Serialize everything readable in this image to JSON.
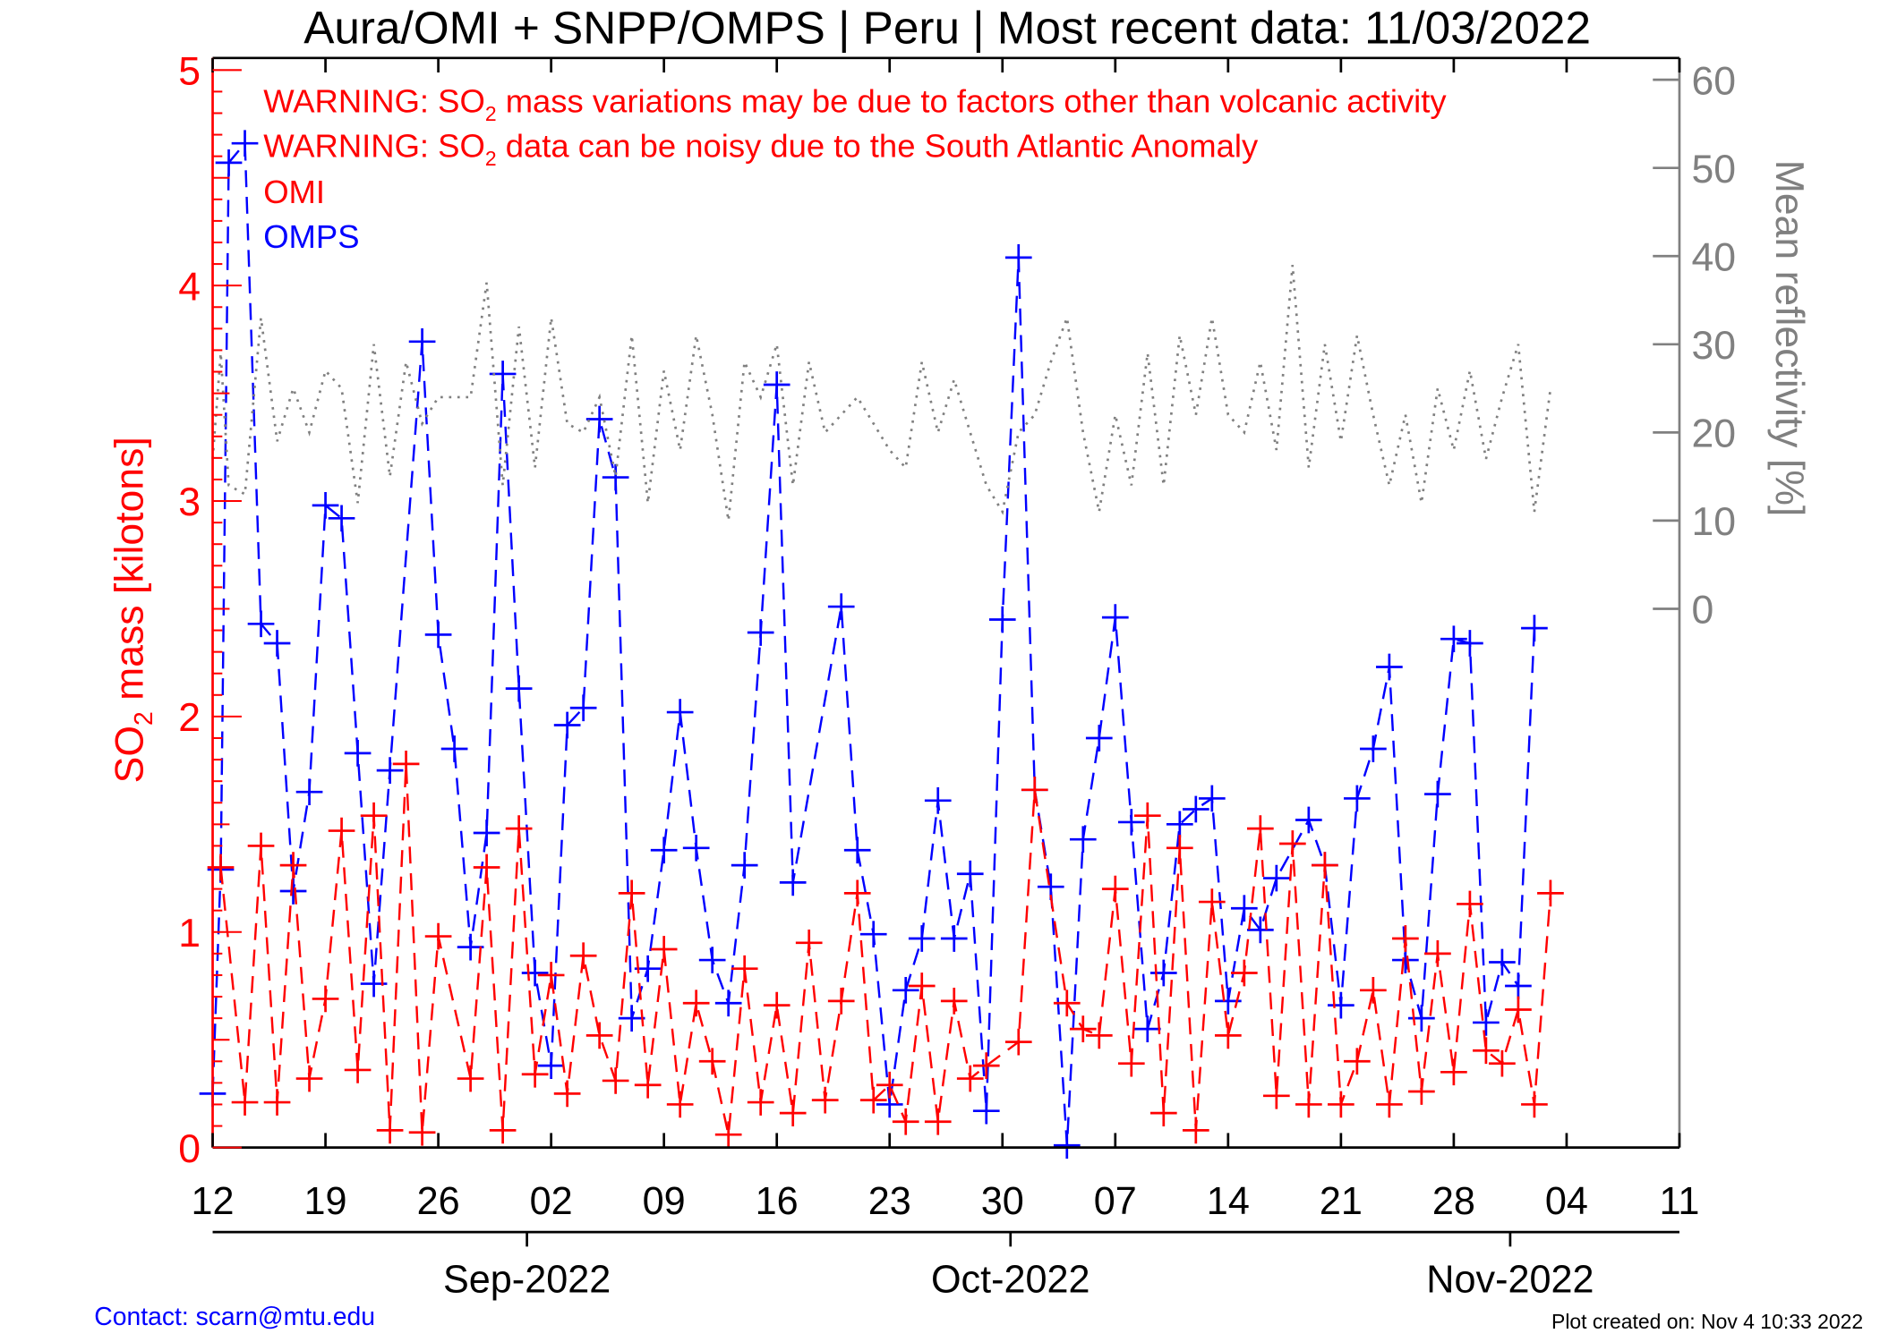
{
  "chart_data": {
    "type": "line",
    "title": "Aura/OMI + SNPP/OMPS | Peru | Most recent data: 11/03/2022",
    "x_unit": "days since 2022-08-12",
    "xlim": [
      0,
      91
    ],
    "x_ticks": [
      {
        "day": 0,
        "label": "12"
      },
      {
        "day": 7,
        "label": "19"
      },
      {
        "day": 14,
        "label": "26"
      },
      {
        "day": 21,
        "label": "02"
      },
      {
        "day": 28,
        "label": "09"
      },
      {
        "day": 35,
        "label": "16"
      },
      {
        "day": 42,
        "label": "23"
      },
      {
        "day": 49,
        "label": "30"
      },
      {
        "day": 56,
        "label": "07"
      },
      {
        "day": 63,
        "label": "14"
      },
      {
        "day": 70,
        "label": "21"
      },
      {
        "day": 77,
        "label": "28"
      },
      {
        "day": 84,
        "label": "04"
      },
      {
        "day": 91,
        "label": "11"
      }
    ],
    "month_ticks": [
      {
        "day": 19.5,
        "label": "Sep-2022"
      },
      {
        "day": 49.5,
        "label": "Oct-2022"
      },
      {
        "day": 80.5,
        "label": "Nov-2022"
      }
    ],
    "ylabel_parts": [
      "SO",
      "2",
      " mass [kilotons]"
    ],
    "ylim": [
      0,
      5
    ],
    "y_ticks": [
      "0",
      "1",
      "2",
      "3",
      "4",
      "5"
    ],
    "y2label": "Mean reflectivity [%]",
    "y2lim": [
      0,
      60
    ],
    "y2_ticks": [
      "0",
      "10",
      "20",
      "30",
      "40",
      "50",
      "60"
    ],
    "warnings": [
      {
        "pre": "WARNING: SO",
        "sub": "2",
        "post": " mass variations may be due to factors other than volcanic activity"
      },
      {
        "pre": "WARNING: SO",
        "sub": "2",
        "post": " data can be noisy due to the South Atlantic Anomaly"
      }
    ],
    "legend": [
      {
        "name": "OMI",
        "color": "#ff0000"
      },
      {
        "name": "OMPS",
        "color": "#0000ff"
      }
    ],
    "series": [
      {
        "name": "OMPS",
        "color": "#0000ff",
        "axis": "left",
        "points": [
          [
            0,
            0.25
          ],
          [
            0.5,
            1.29
          ],
          [
            1,
            4.57
          ],
          [
            2,
            4.66
          ],
          [
            3,
            2.43
          ],
          [
            4,
            2.34
          ],
          [
            5,
            1.19
          ],
          [
            6,
            1.65
          ],
          [
            7,
            2.98
          ],
          [
            8,
            2.92
          ],
          [
            9,
            1.83
          ],
          [
            10,
            0.76
          ],
          [
            11,
            1.75
          ],
          [
            13,
            3.74
          ],
          [
            14,
            2.38
          ],
          [
            15,
            1.85
          ],
          [
            16,
            0.93
          ],
          [
            17,
            1.46
          ],
          [
            18,
            3.59
          ],
          [
            19,
            2.13
          ],
          [
            20,
            0.81
          ],
          [
            21,
            0.38
          ],
          [
            22,
            1.96
          ],
          [
            23,
            2.04
          ],
          [
            24,
            3.38
          ],
          [
            25,
            3.11
          ],
          [
            26,
            0.6
          ],
          [
            27,
            0.83
          ],
          [
            28,
            1.38
          ],
          [
            29,
            2.02
          ],
          [
            30,
            1.39
          ],
          [
            31,
            0.87
          ],
          [
            32,
            0.67
          ],
          [
            33,
            1.31
          ],
          [
            34,
            2.39
          ],
          [
            35,
            3.54
          ],
          [
            36,
            1.23
          ],
          [
            39,
            2.51
          ],
          [
            40,
            1.38
          ],
          [
            41,
            0.99
          ],
          [
            42,
            0.2
          ],
          [
            43,
            0.73
          ],
          [
            44,
            0.97
          ],
          [
            45,
            1.61
          ],
          [
            46,
            0.97
          ],
          [
            47,
            1.27
          ],
          [
            48,
            0.17
          ],
          [
            49,
            2.45
          ],
          [
            50,
            4.13
          ],
          [
            51,
            1.66
          ],
          [
            52,
            1.21
          ],
          [
            53,
            0.01
          ],
          [
            54,
            1.43
          ],
          [
            55,
            1.9
          ],
          [
            56,
            2.46
          ],
          [
            57,
            1.51
          ],
          [
            58,
            0.55
          ],
          [
            59,
            0.81
          ],
          [
            60,
            1.5
          ],
          [
            61,
            1.57
          ],
          [
            62,
            1.62
          ],
          [
            63,
            0.68
          ],
          [
            64,
            1.11
          ],
          [
            65,
            1.01
          ],
          [
            66,
            1.25
          ],
          [
            68,
            1.52
          ],
          [
            69,
            1.31
          ],
          [
            70,
            0.66
          ],
          [
            71,
            1.62
          ],
          [
            72,
            1.85
          ],
          [
            73,
            2.23
          ],
          [
            74,
            0.87
          ],
          [
            75,
            0.6
          ],
          [
            76,
            1.64
          ],
          [
            77,
            2.36
          ],
          [
            78,
            2.34
          ],
          [
            79,
            0.58
          ],
          [
            80,
            0.86
          ],
          [
            81,
            0.75
          ],
          [
            82,
            2.41
          ]
        ]
      },
      {
        "name": "OMI",
        "color": "#ff0000",
        "axis": "left",
        "points": [
          [
            0.5,
            1.3
          ],
          [
            2,
            0.21
          ],
          [
            3,
            1.4
          ],
          [
            4,
            0.21
          ],
          [
            5,
            1.31
          ],
          [
            6,
            0.32
          ],
          [
            7,
            0.69
          ],
          [
            8,
            1.47
          ],
          [
            9,
            0.36
          ],
          [
            10,
            1.54
          ],
          [
            11,
            0.08
          ],
          [
            12,
            1.78
          ],
          [
            13,
            0.07
          ],
          [
            14,
            0.98
          ],
          [
            16,
            0.32
          ],
          [
            17,
            1.3
          ],
          [
            18,
            0.08
          ],
          [
            19,
            1.48
          ],
          [
            20,
            0.34
          ],
          [
            21,
            0.8
          ],
          [
            22,
            0.25
          ],
          [
            23,
            0.89
          ],
          [
            24,
            0.52
          ],
          [
            25,
            0.31
          ],
          [
            26,
            1.18
          ],
          [
            27,
            0.29
          ],
          [
            28,
            0.92
          ],
          [
            29,
            0.2
          ],
          [
            30,
            0.67
          ],
          [
            31,
            0.4
          ],
          [
            32,
            0.06
          ],
          [
            33,
            0.83
          ],
          [
            34,
            0.21
          ],
          [
            35,
            0.66
          ],
          [
            36,
            0.16
          ],
          [
            37,
            0.95
          ],
          [
            38,
            0.22
          ],
          [
            39,
            0.68
          ],
          [
            40,
            1.18
          ],
          [
            41,
            0.22
          ],
          [
            42,
            0.29
          ],
          [
            43,
            0.12
          ],
          [
            44,
            0.75
          ],
          [
            45,
            0.12
          ],
          [
            46,
            0.68
          ],
          [
            47,
            0.32
          ],
          [
            48,
            0.38
          ],
          [
            50,
            0.49
          ],
          [
            51,
            1.66
          ],
          [
            53,
            0.67
          ],
          [
            54,
            0.55
          ],
          [
            55,
            0.52
          ],
          [
            56,
            1.2
          ],
          [
            57,
            0.39
          ],
          [
            58,
            1.54
          ],
          [
            59,
            0.16
          ],
          [
            60,
            1.39
          ],
          [
            61,
            0.08
          ],
          [
            62,
            1.14
          ],
          [
            63,
            0.52
          ],
          [
            64,
            0.81
          ],
          [
            65,
            1.48
          ],
          [
            66,
            0.24
          ],
          [
            67,
            1.41
          ],
          [
            68,
            0.2
          ],
          [
            69,
            1.31
          ],
          [
            70,
            0.2
          ],
          [
            71,
            0.4
          ],
          [
            72,
            0.73
          ],
          [
            73,
            0.2
          ],
          [
            74,
            0.97
          ],
          [
            75,
            0.26
          ],
          [
            76,
            0.9
          ],
          [
            77,
            0.35
          ],
          [
            78,
            1.13
          ],
          [
            79,
            0.45
          ],
          [
            80,
            0.39
          ],
          [
            81,
            0.64
          ],
          [
            82,
            0.2
          ],
          [
            83,
            1.18
          ]
        ]
      },
      {
        "name": "Mean reflectivity",
        "color": "#808080",
        "axis": "right",
        "points": [
          [
            0,
            17
          ],
          [
            0.5,
            29
          ],
          [
            1,
            14
          ],
          [
            2,
            13
          ],
          [
            3,
            33
          ],
          [
            4,
            19
          ],
          [
            5,
            25
          ],
          [
            6,
            20
          ],
          [
            7,
            27
          ],
          [
            8,
            25
          ],
          [
            9,
            12
          ],
          [
            10,
            30
          ],
          [
            11,
            15
          ],
          [
            12,
            28
          ],
          [
            13,
            21
          ],
          [
            14,
            24
          ],
          [
            15,
            24
          ],
          [
            16,
            24
          ],
          [
            17,
            37
          ],
          [
            18,
            14
          ],
          [
            19,
            32
          ],
          [
            20,
            16
          ],
          [
            21,
            33
          ],
          [
            22,
            21
          ],
          [
            23,
            20
          ],
          [
            24,
            24
          ],
          [
            25,
            15
          ],
          [
            26,
            31
          ],
          [
            27,
            12
          ],
          [
            28,
            27
          ],
          [
            29,
            18
          ],
          [
            30,
            31
          ],
          [
            31,
            22
          ],
          [
            32,
            10
          ],
          [
            33,
            28
          ],
          [
            34,
            24
          ],
          [
            35,
            30
          ],
          [
            36,
            14
          ],
          [
            37,
            28
          ],
          [
            38,
            20
          ],
          [
            39,
            22
          ],
          [
            40,
            24
          ],
          [
            41,
            21
          ],
          [
            42,
            18
          ],
          [
            43,
            16
          ],
          [
            44,
            28
          ],
          [
            45,
            20
          ],
          [
            46,
            26
          ],
          [
            47,
            20
          ],
          [
            48,
            14
          ],
          [
            49,
            11
          ],
          [
            50,
            20
          ],
          [
            51,
            22
          ],
          [
            52,
            28
          ],
          [
            53,
            33
          ],
          [
            54,
            20
          ],
          [
            55,
            11
          ],
          [
            56,
            22
          ],
          [
            57,
            14
          ],
          [
            58,
            29
          ],
          [
            59,
            14
          ],
          [
            60,
            31
          ],
          [
            61,
            22
          ],
          [
            62,
            33
          ],
          [
            63,
            22
          ],
          [
            64,
            20
          ],
          [
            65,
            28
          ],
          [
            66,
            18
          ],
          [
            67,
            39
          ],
          [
            68,
            16
          ],
          [
            69,
            30
          ],
          [
            70,
            19
          ],
          [
            71,
            31
          ],
          [
            72,
            22
          ],
          [
            73,
            14
          ],
          [
            74,
            22
          ],
          [
            75,
            12
          ],
          [
            76,
            25
          ],
          [
            77,
            18
          ],
          [
            78,
            27
          ],
          [
            79,
            17
          ],
          [
            80,
            24
          ],
          [
            81,
            30
          ],
          [
            82,
            11
          ],
          [
            83,
            25
          ]
        ]
      }
    ]
  },
  "footer": {
    "contact": "Contact: scarn@mtu.edu",
    "created": "Plot created on: Nov  4 10:33 2022"
  }
}
